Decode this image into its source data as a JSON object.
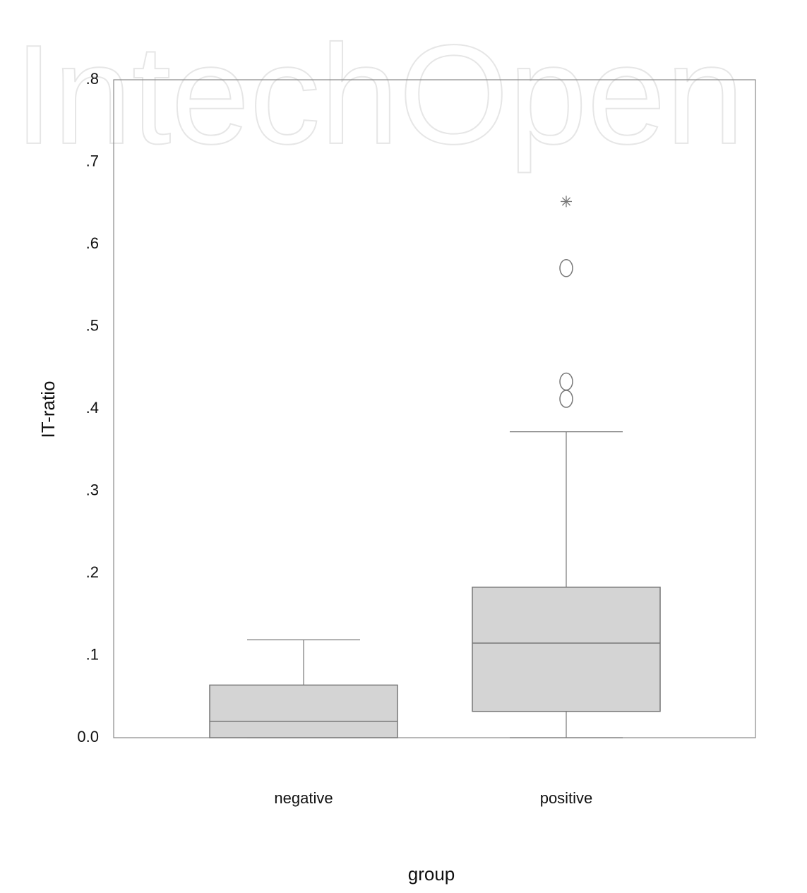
{
  "watermark": "IntechOpen",
  "chart_data": {
    "type": "box",
    "y_label": "IT-ratio",
    "x_label": "group",
    "categories": [
      "negative",
      "positive"
    ],
    "boxes": [
      {
        "min": 0,
        "q1": 0,
        "median": 0.02,
        "q3": 0.064,
        "max": 0.119,
        "outliers": [],
        "extremes": []
      },
      {
        "min": 0,
        "q1": 0.032,
        "median": 0.115,
        "q3": 0.183,
        "max": 0.372,
        "outliers": [
          0.571,
          0.433,
          0.412
        ],
        "extremes": [
          0.652
        ]
      }
    ],
    "color": "#d4d4d4",
    "line_color": "#777777",
    "ylim": [
      0,
      0.8
    ],
    "yticks": [
      {
        "value": 0,
        "label": "0.0"
      },
      {
        "value": 0.1,
        "label": ".1"
      },
      {
        "value": 0.2,
        "label": ".2"
      },
      {
        "value": 0.3,
        "label": ".3"
      },
      {
        "value": 0.4,
        "label": ".4"
      },
      {
        "value": 0.5,
        "label": ".5"
      },
      {
        "value": 0.6,
        "label": ".6"
      },
      {
        "value": 0.7,
        "label": ".7"
      },
      {
        "value": 0.8,
        "label": ".8"
      }
    ],
    "grid": false
  }
}
